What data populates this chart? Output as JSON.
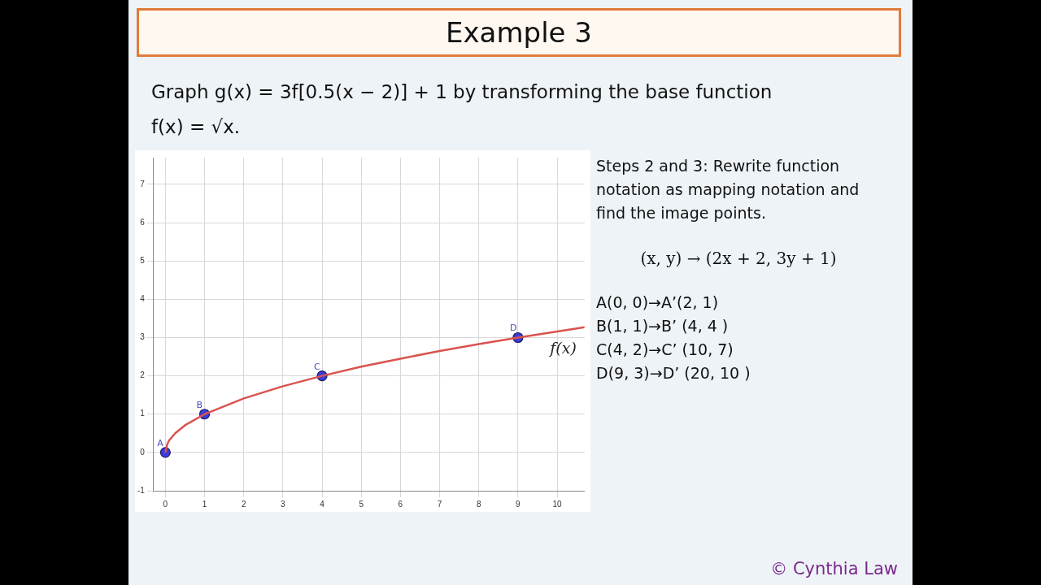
{
  "chart_data": {
    "type": "line",
    "title": "Example 3",
    "subtitle": "Graph g(x) = 3f[0.5(x − 2)] + 1 by transforming the base function f(x) = √x.",
    "series": [
      {
        "name": "f(x)",
        "color": "#d9534f",
        "marker": "none",
        "x": [
          0,
          0.05,
          0.1,
          0.25,
          0.5,
          1,
          2,
          3,
          4,
          5,
          6,
          7,
          8,
          9,
          10,
          10.7
        ],
        "values": [
          0,
          0.22,
          0.32,
          0.5,
          0.71,
          1,
          1.41,
          1.73,
          2,
          2.24,
          2.45,
          2.65,
          2.83,
          3,
          3.16,
          3.27
        ]
      },
      {
        "type": "scatter",
        "color": "#3b3bdb",
        "marker": "circle",
        "x": [
          0,
          1,
          4,
          9
        ],
        "values": [
          0,
          1,
          2,
          3
        ]
      }
    ],
    "xlim": [
      -0.3,
      10.7
    ],
    "ylim": [
      -1,
      7.7
    ],
    "xticks": [
      0,
      1,
      2,
      3,
      4,
      5,
      6,
      7,
      8,
      9,
      10
    ],
    "yticks": [
      -1,
      0,
      1,
      2,
      3,
      4,
      5,
      6,
      7
    ],
    "grid": true,
    "legend": false,
    "annotations": [
      {
        "text": "A",
        "x": 0,
        "y": 0
      },
      {
        "text": "B",
        "x": 1,
        "y": 1
      },
      {
        "text": "C",
        "x": 4,
        "y": 2
      },
      {
        "text": "D",
        "x": 9,
        "y": 3
      },
      "Steps 2 and 3: Rewrite function notation as mapping notation and find the image points.",
      "(x, y) → (2x + 2, 3y + 1)",
      "A(0, 0)→A’(2, 1)",
      "B(1, 1)→B’ (4, 4 )",
      "C(4, 2)→C’ (10, 7)",
      "D(9, 3)→D’ (20, 10 )",
      "© Cynthia Law"
    ]
  }
}
